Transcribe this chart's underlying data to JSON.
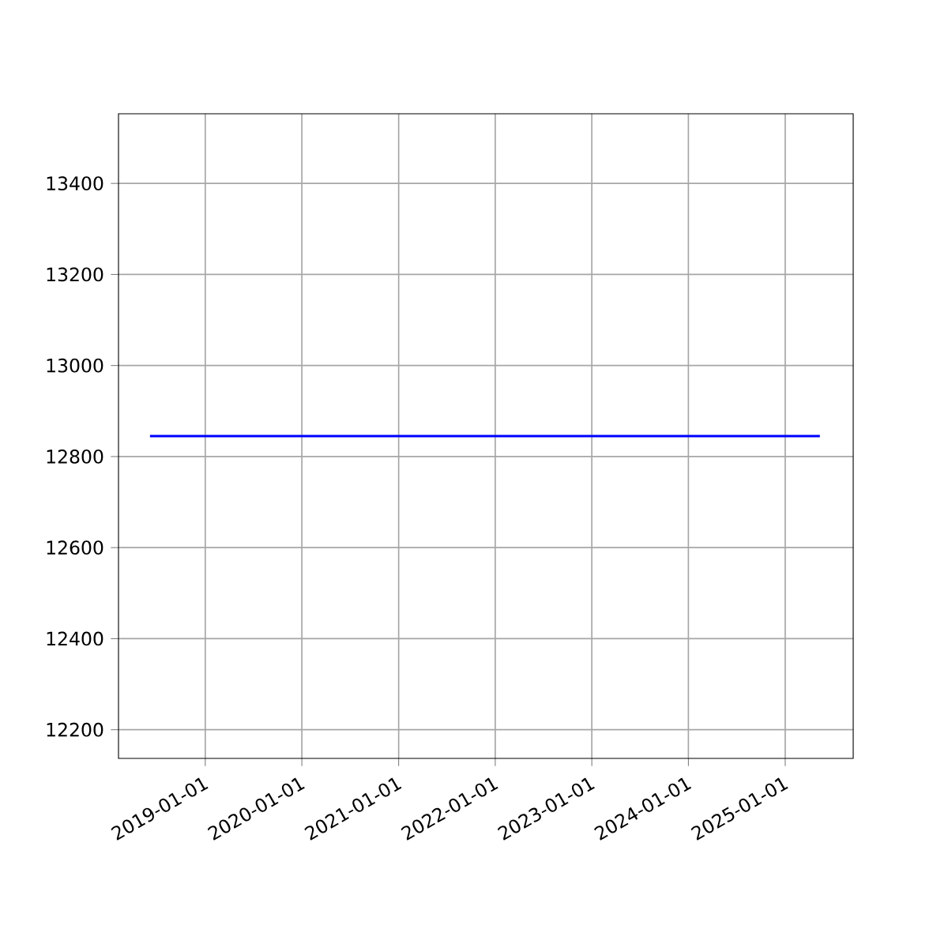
{
  "chart_data": {
    "type": "line",
    "x": [
      "2018-06-06",
      "2025-05-12"
    ],
    "series": [
      {
        "color": "#0000ff",
        "values": [
          12845,
          12845
        ]
      }
    ],
    "xlim": [
      "2018-02-07",
      "2025-09-15"
    ],
    "ylim": [
      12137,
      13553
    ],
    "xticks": [
      "2019-01-01",
      "2020-01-01",
      "2021-01-01",
      "2022-01-01",
      "2023-01-01",
      "2024-01-01",
      "2025-01-01"
    ],
    "yticks": [
      12200,
      12400,
      12600,
      12800,
      13000,
      13200,
      13400
    ],
    "grid": true
  }
}
